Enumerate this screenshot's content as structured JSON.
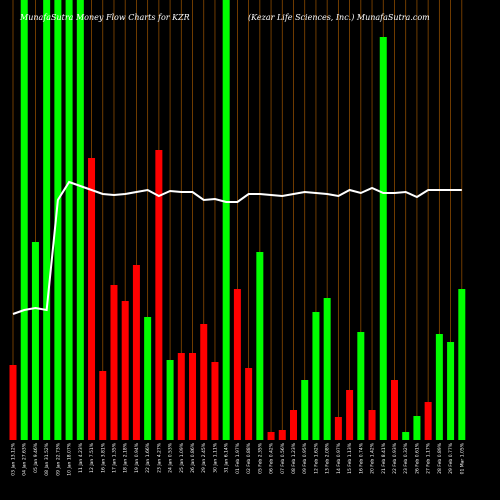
{
  "chart_data": {
    "type": "bar",
    "title": "MunafaSutra Money Flow Charts for KZR",
    "subtitle": "(Kezar Life Sciences, Inc.) MunafaSutra.com",
    "categories": [
      "03 Jan 13.12%",
      "04 Jan 27.63%",
      "05 Jan 9.46%",
      "08 Jan 31.52%",
      "09 Jan 22.73%",
      "10 Jan 18.07%",
      "11 Jan 4.23%",
      "12 Jan 7.51%",
      "16 Jan 3.81%",
      "17 Jan 1.35%",
      "18 Jan 2.18%",
      "19 Jan 0.94%",
      "22 Jan 1.66%",
      "23 Jan 4.27%",
      "24 Jan 0.53%",
      "25 Jan 1.09%",
      "26 Jan 0.86%",
      "29 Jan 2.45%",
      "30 Jan 1.11%",
      "31 Jan 6.14%",
      "01 Feb 1.97%",
      "02 Feb 0.88%",
      "05 Feb 2.35%",
      "06 Feb 0.42%",
      "07 Feb 0.56%",
      "08 Feb 1.23%",
      "09 Feb 0.95%",
      "12 Feb 1.62%",
      "13 Feb 2.08%",
      "14 Feb 0.97%",
      "15 Feb 1.13%",
      "16 Feb 0.74%",
      "20 Feb 1.42%",
      "21 Feb 8.41%",
      "22 Feb 0.93%",
      "23 Feb 0.32%",
      "26 Feb 0.61%",
      "27 Feb 1.17%",
      "28 Feb 0.89%",
      "29 Feb 0.77%",
      "01 Mar 1.05%"
    ],
    "values": [
      75,
      440,
      198,
      440,
      440,
      440,
      440,
      282,
      69,
      155,
      139,
      175,
      123,
      290,
      80,
      87,
      87,
      116,
      78,
      440,
      151,
      72,
      188,
      8,
      10,
      30,
      60,
      128,
      142,
      23,
      50,
      108,
      30,
      403,
      60,
      8,
      24,
      38,
      106,
      98,
      151
    ],
    "colors": [
      "#ff0000",
      "#00ff00",
      "#00ff00",
      "#00ff00",
      "#00ff00",
      "#00ff00",
      "#00ff00",
      "#ff0000",
      "#ff0000",
      "#ff0000",
      "#ff0000",
      "#ff0000",
      "#00ff00",
      "#ff0000",
      "#00ff00",
      "#ff0000",
      "#ff0000",
      "#ff0000",
      "#ff0000",
      "#00ff00",
      "#ff0000",
      "#ff0000",
      "#00ff00",
      "#ff0000",
      "#ff0000",
      "#ff0000",
      "#00ff00",
      "#00ff00",
      "#00ff00",
      "#ff0000",
      "#ff0000",
      "#00ff00",
      "#ff0000",
      "#00ff00",
      "#ff0000",
      "#00ff00",
      "#00ff00",
      "#ff0000",
      "#00ff00",
      "#00ff00",
      "#00ff00"
    ],
    "line_values": [
      126,
      130,
      132,
      130,
      240,
      258,
      254,
      250,
      246,
      245,
      246,
      248,
      250,
      244,
      249,
      248,
      248,
      240,
      241,
      238,
      238,
      246,
      246,
      245,
      244,
      246,
      248,
      247,
      246,
      244,
      250,
      247,
      252,
      247,
      247,
      248,
      243,
      250,
      250,
      250,
      250
    ],
    "line_color": "#ffffff",
    "ylim": [
      0,
      440
    ]
  }
}
